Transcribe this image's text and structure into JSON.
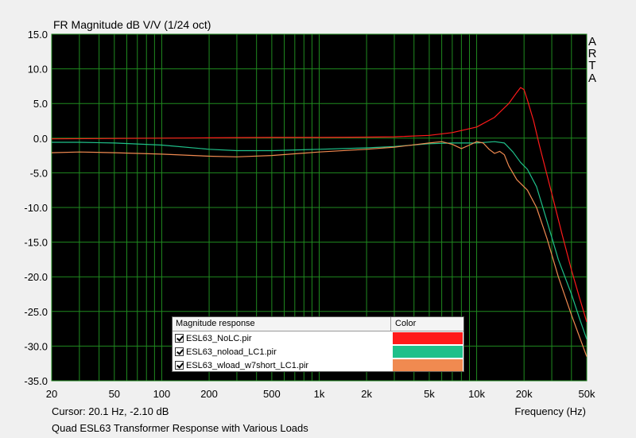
{
  "window": {
    "title": "FR Magnitude dB V/V (1/24 oct)",
    "brand": [
      "A",
      "R",
      "T",
      "A"
    ],
    "cursor_readout": "Cursor: 20.1 Hz, -2.10 dB",
    "x_axis_label": "Frequency (Hz)",
    "caption": "Quad ESL63 Transformer Response with Various Loads"
  },
  "legend": {
    "header_name": "Magnitude response",
    "header_color": "Color",
    "items": [
      {
        "label": "ESL63_NoLC.pir",
        "color": "#ff1a1a",
        "checked": true
      },
      {
        "label": "ESL63_noload_LC1.pir",
        "color": "#1fc08a",
        "checked": true
      },
      {
        "label": "ESL63_wload_w7short_LC1.pir",
        "color": "#f08a50",
        "checked": true
      }
    ]
  },
  "chart_data": {
    "type": "line",
    "title": "FR Magnitude dB V/V (1/24 oct)",
    "xlabel": "Frequency (Hz)",
    "ylabel": "",
    "x_scale": "log",
    "xlim": [
      20,
      50000
    ],
    "ylim": [
      -35,
      15
    ],
    "grid": true,
    "x_ticks": [
      {
        "v": 20,
        "label": "20"
      },
      {
        "v": 50,
        "label": "50"
      },
      {
        "v": 100,
        "label": "100"
      },
      {
        "v": 200,
        "label": "200"
      },
      {
        "v": 500,
        "label": "500"
      },
      {
        "v": 1000,
        "label": "1k"
      },
      {
        "v": 2000,
        "label": "2k"
      },
      {
        "v": 5000,
        "label": "5k"
      },
      {
        "v": 10000,
        "label": "10k"
      },
      {
        "v": 20000,
        "label": "20k"
      },
      {
        "v": 50000,
        "label": "50k"
      }
    ],
    "y_ticks": [
      15.0,
      10.0,
      5.0,
      0.0,
      -5.0,
      -10.0,
      -15.0,
      -20.0,
      -25.0,
      -30.0,
      -35.0
    ],
    "y_tick_labels": [
      "15.0",
      "10.0",
      "5.0",
      "0.0",
      "-5.0",
      "-10.0",
      "-15.0",
      "-20.0",
      "-25.0",
      "-30.0",
      "-35.0"
    ],
    "series": [
      {
        "name": "ESL63_NoLC.pir",
        "color": "#ff1a1a",
        "points": [
          [
            20,
            -0.1
          ],
          [
            50,
            -0.05
          ],
          [
            100,
            0.0
          ],
          [
            200,
            0.05
          ],
          [
            500,
            0.1
          ],
          [
            1000,
            0.1
          ],
          [
            2000,
            0.15
          ],
          [
            3000,
            0.2
          ],
          [
            5000,
            0.4
          ],
          [
            7000,
            0.8
          ],
          [
            10000,
            1.6
          ],
          [
            13000,
            3.0
          ],
          [
            16000,
            5.0
          ],
          [
            18000,
            6.6
          ],
          [
            19000,
            7.3
          ],
          [
            20000,
            7.0
          ],
          [
            21000,
            5.5
          ],
          [
            23000,
            2.5
          ],
          [
            25000,
            -1.0
          ],
          [
            30000,
            -8.0
          ],
          [
            35000,
            -14.0
          ],
          [
            40000,
            -19.0
          ],
          [
            45000,
            -23.0
          ],
          [
            50000,
            -26.5
          ]
        ]
      },
      {
        "name": "ESL63_noload_LC1.pir",
        "color": "#1fc08a",
        "points": [
          [
            20,
            -0.6
          ],
          [
            30,
            -0.6
          ],
          [
            50,
            -0.7
          ],
          [
            100,
            -1.0
          ],
          [
            200,
            -1.6
          ],
          [
            300,
            -1.8
          ],
          [
            500,
            -1.8
          ],
          [
            1000,
            -1.6
          ],
          [
            2000,
            -1.4
          ],
          [
            3000,
            -1.2
          ],
          [
            5000,
            -0.8
          ],
          [
            7000,
            -0.7
          ],
          [
            10000,
            -0.7
          ],
          [
            13000,
            -0.5
          ],
          [
            15000,
            -0.7
          ],
          [
            17000,
            -2.0
          ],
          [
            19000,
            -3.5
          ],
          [
            21000,
            -4.5
          ],
          [
            24000,
            -7.0
          ],
          [
            28000,
            -12.0
          ],
          [
            33000,
            -17.5
          ],
          [
            40000,
            -22.5
          ],
          [
            45000,
            -26.0
          ],
          [
            50000,
            -29.0
          ]
        ]
      },
      {
        "name": "ESL63_wload_w7short_LC1.pir",
        "color": "#f08a50",
        "points": [
          [
            20,
            -2.1
          ],
          [
            30,
            -2.0
          ],
          [
            50,
            -2.1
          ],
          [
            100,
            -2.3
          ],
          [
            200,
            -2.6
          ],
          [
            300,
            -2.7
          ],
          [
            500,
            -2.5
          ],
          [
            1000,
            -2.0
          ],
          [
            2000,
            -1.6
          ],
          [
            3000,
            -1.3
          ],
          [
            5000,
            -0.7
          ],
          [
            6000,
            -0.5
          ],
          [
            7000,
            -0.9
          ],
          [
            8000,
            -1.5
          ],
          [
            9000,
            -1.0
          ],
          [
            10000,
            -0.5
          ],
          [
            11000,
            -0.7
          ],
          [
            12000,
            -1.6
          ],
          [
            13000,
            -2.2
          ],
          [
            14000,
            -1.9
          ],
          [
            15000,
            -2.4
          ],
          [
            16000,
            -4.0
          ],
          [
            18000,
            -6.0
          ],
          [
            21000,
            -7.5
          ],
          [
            24000,
            -10.0
          ],
          [
            28000,
            -14.5
          ],
          [
            33000,
            -20.0
          ],
          [
            40000,
            -25.5
          ],
          [
            50000,
            -31.5
          ]
        ]
      }
    ]
  }
}
